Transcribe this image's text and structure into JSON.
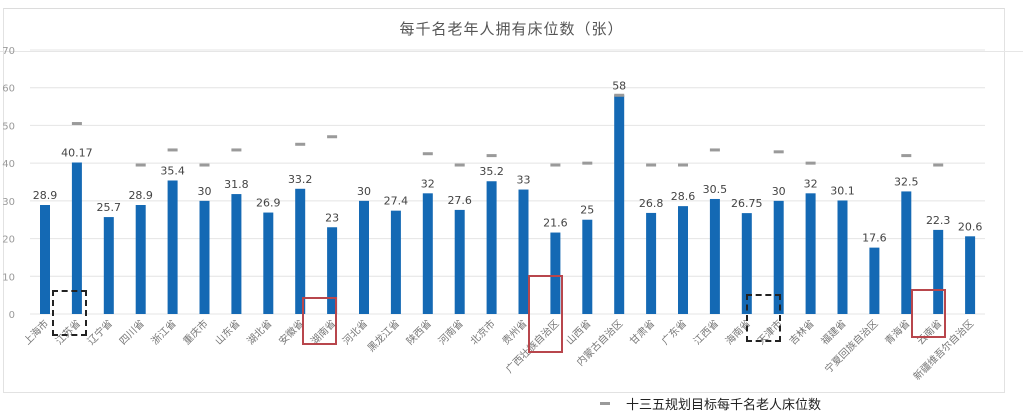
{
  "chart_data": {
    "type": "bar",
    "title": "每千名老年人拥有床位数（张）",
    "xlabel": "",
    "ylabel": "",
    "ylim": [
      0,
      70
    ],
    "yticks": [
      0,
      10,
      20,
      30,
      40,
      50,
      60,
      70
    ],
    "grid": true,
    "legend_position": "bottom-right",
    "categories": [
      "上海市",
      "江苏省",
      "辽宁省",
      "四川省",
      "浙江省",
      "重庆市",
      "山东省",
      "湖北省",
      "安徽省",
      "湖南省",
      "河北省",
      "黑龙江省",
      "陕西省",
      "河南省",
      "北京市",
      "贵州省",
      "广西壮族自治区",
      "山西省",
      "内蒙古自治区",
      "甘肃省",
      "广东省",
      "江西省",
      "海南省",
      "天津市",
      "吉林省",
      "福建省",
      "宁夏回族自治区",
      "青海省",
      "云南省",
      "新疆维吾尔自治区"
    ],
    "series": [
      {
        "name": "每千名老年人拥有床位数",
        "kind": "bar",
        "color": "#1469b4",
        "values": [
          28.9,
          40.17,
          25.7,
          28.9,
          35.4,
          30,
          31.8,
          26.9,
          33.2,
          23,
          30,
          27.4,
          32,
          27.6,
          35.2,
          33,
          21.6,
          25,
          58,
          26.8,
          28.6,
          30.5,
          26.75,
          30,
          32,
          30.1,
          17.6,
          32.5,
          22.3,
          20.6
        ],
        "labels": [
          "28.9",
          "40.17",
          "25.7",
          "28.9",
          "35.4",
          "30",
          "31.8",
          "26.9",
          "33.2",
          "23",
          "30",
          "27.4",
          "32",
          "27.6",
          "35.2",
          "33",
          "21.6",
          "25",
          "58",
          "26.8",
          "28.6",
          "30.5",
          "26.75",
          "30",
          "32",
          "30.1",
          "17.6",
          "32.5",
          "22.3",
          "20.6"
        ]
      },
      {
        "name": "十三五规划目标每千名老人床位数",
        "kind": "marker",
        "color": "#9a9a9a",
        "values": [
          null,
          50.5,
          null,
          39.5,
          43.5,
          39.5,
          43.5,
          null,
          45,
          47,
          null,
          null,
          42.5,
          39.5,
          42,
          null,
          39.5,
          40,
          58,
          39.5,
          39.5,
          43.5,
          null,
          43,
          40,
          null,
          null,
          42,
          39.5,
          null
        ]
      }
    ],
    "annotations": [
      {
        "type": "dashed-box",
        "color": "#222222",
        "category": "江苏省"
      },
      {
        "type": "solid-box",
        "color": "#b8464c",
        "category": "湖南省"
      },
      {
        "type": "solid-box",
        "color": "#b8464c",
        "category": "广西壮族自治区"
      },
      {
        "type": "dashed-box",
        "color": "#222222",
        "category": "天津市"
      },
      {
        "type": "solid-box",
        "color": "#b8464c",
        "category": "云南省"
      }
    ]
  },
  "title": "每千名老年人拥有床位数（张）",
  "legend": {
    "label": "十三五规划目标每千名老人床位数",
    "marker": "dash-marker"
  },
  "colors": {
    "bar": "#1469b4",
    "target": "#9a9a9a",
    "grid": "#e4e4e4",
    "axis_text": "#9a9a9a",
    "label_text": "#444444",
    "highlight_red": "#b8464c",
    "highlight_dash": "#222222"
  }
}
